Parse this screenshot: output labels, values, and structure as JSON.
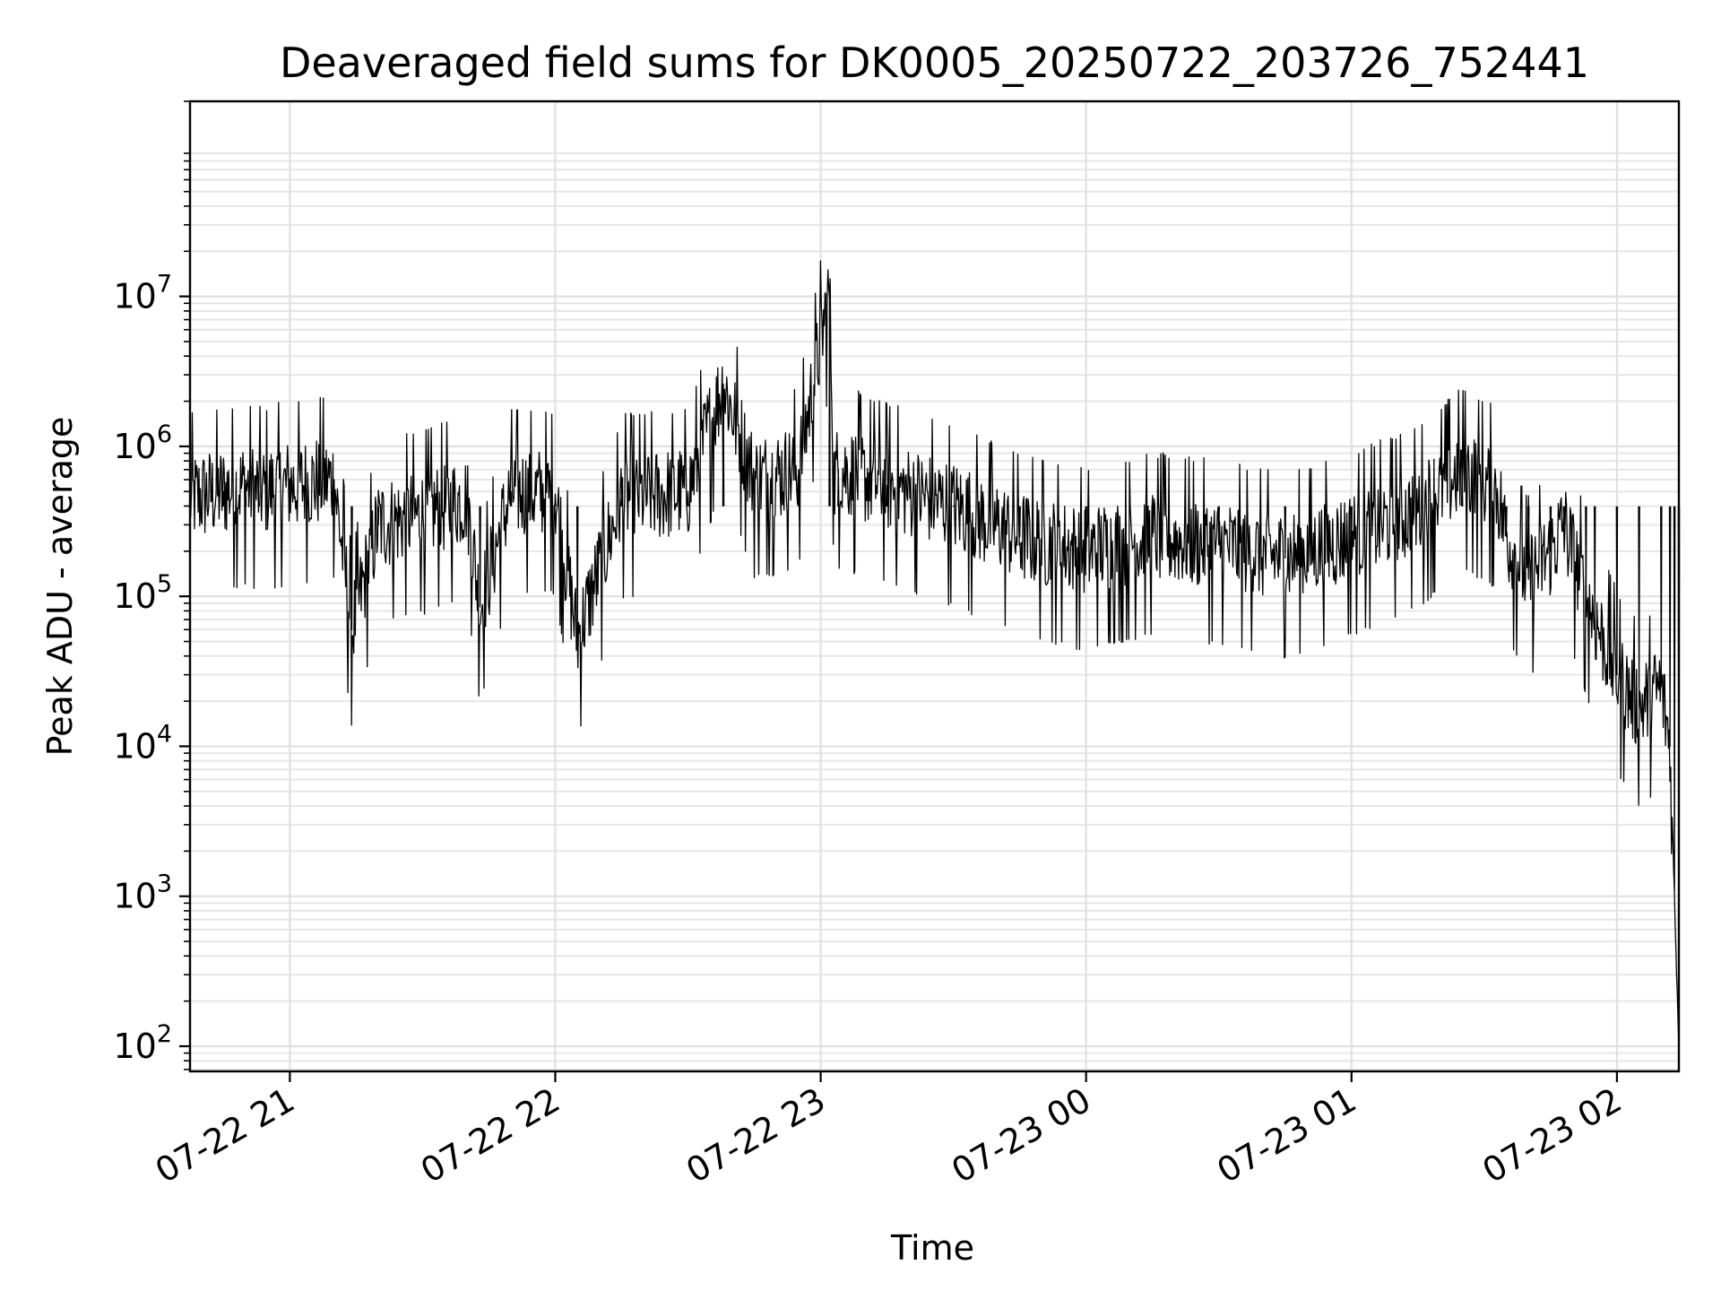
{
  "chart_data": {
    "type": "line",
    "title": "Deaveraged field sums for DK0005_20250722_203726_752441",
    "xlabel": "Time",
    "ylabel": "Peak ADU - average",
    "yscale": "log",
    "ylim": [
      68,
      200000000
    ],
    "xlim": [
      "2025-07-22 20:37:26",
      "2025-07-23 02:14:00"
    ],
    "grid": "major and minor, light gray",
    "legend": "none",
    "line_color": "#000000",
    "x_ticks": [
      {
        "value": "2025-07-22 21:00",
        "label": "07-22 21"
      },
      {
        "value": "2025-07-22 22:00",
        "label": "07-22 22"
      },
      {
        "value": "2025-07-22 23:00",
        "label": "07-22 23"
      },
      {
        "value": "2025-07-23 00:00",
        "label": "07-23 00"
      },
      {
        "value": "2025-07-23 01:00",
        "label": "07-23 01"
      },
      {
        "value": "2025-07-23 02:00",
        "label": "07-23 02"
      }
    ],
    "y_ticks": [
      {
        "value": 100,
        "base": "10",
        "exp": "2"
      },
      {
        "value": 1000,
        "base": "10",
        "exp": "3"
      },
      {
        "value": 10000,
        "base": "10",
        "exp": "4"
      },
      {
        "value": 100000,
        "base": "10",
        "exp": "5"
      },
      {
        "value": 1000000,
        "base": "10",
        "exp": "6"
      },
      {
        "value": 10000000,
        "base": "10",
        "exp": "7"
      }
    ],
    "series": [
      {
        "x": [
          "2025-07-22 20:37:26",
          "2025-07-22 20:45",
          "2025-07-22 20:50",
          "2025-07-22 20:53",
          "2025-07-22 21:00",
          "2025-07-22 21:10",
          "2025-07-22 21:14",
          "2025-07-22 21:20",
          "2025-07-22 21:30",
          "2025-07-22 21:40",
          "2025-07-22 21:43",
          "2025-07-22 21:50",
          "2025-07-22 22:00",
          "2025-07-22 22:05",
          "2025-07-22 22:15",
          "2025-07-22 22:30",
          "2025-07-22 22:38",
          "2025-07-22 22:45",
          "2025-07-22 22:55",
          "2025-07-22 23:02",
          "2025-07-22 23:03",
          "2025-07-22 23:04",
          "2025-07-22 23:15",
          "2025-07-22 23:30",
          "2025-07-22 23:45",
          "2025-07-23 00:00",
          "2025-07-23 00:15",
          "2025-07-23 00:30",
          "2025-07-23 00:45",
          "2025-07-23 01:00",
          "2025-07-23 01:15",
          "2025-07-23 01:25",
          "2025-07-23 01:33",
          "2025-07-23 01:35",
          "2025-07-23 01:40",
          "2025-07-23 01:45",
          "2025-07-23 01:48",
          "2025-07-23 01:53",
          "2025-07-23 01:55",
          "2025-07-23 02:00",
          "2025-07-23 02:05",
          "2025-07-23 02:10",
          "2025-07-23 02:12",
          "2025-07-23 02:13",
          "2025-07-23 02:14"
        ],
        "y": [
          450000,
          500000,
          550000,
          500000,
          550000,
          600000,
          60000,
          300000,
          350000,
          450000,
          85000,
          500000,
          480000,
          52000,
          450000,
          500000,
          2600000,
          600000,
          700000,
          11000000,
          600000,
          700000,
          550000,
          400000,
          250000,
          200000,
          250000,
          220000,
          180000,
          250000,
          380000,
          700000,
          500000,
          250000,
          130000,
          200000,
          300000,
          100000,
          70000,
          30000,
          18000,
          25000,
          10000,
          1000,
          100
        ]
      }
    ]
  }
}
